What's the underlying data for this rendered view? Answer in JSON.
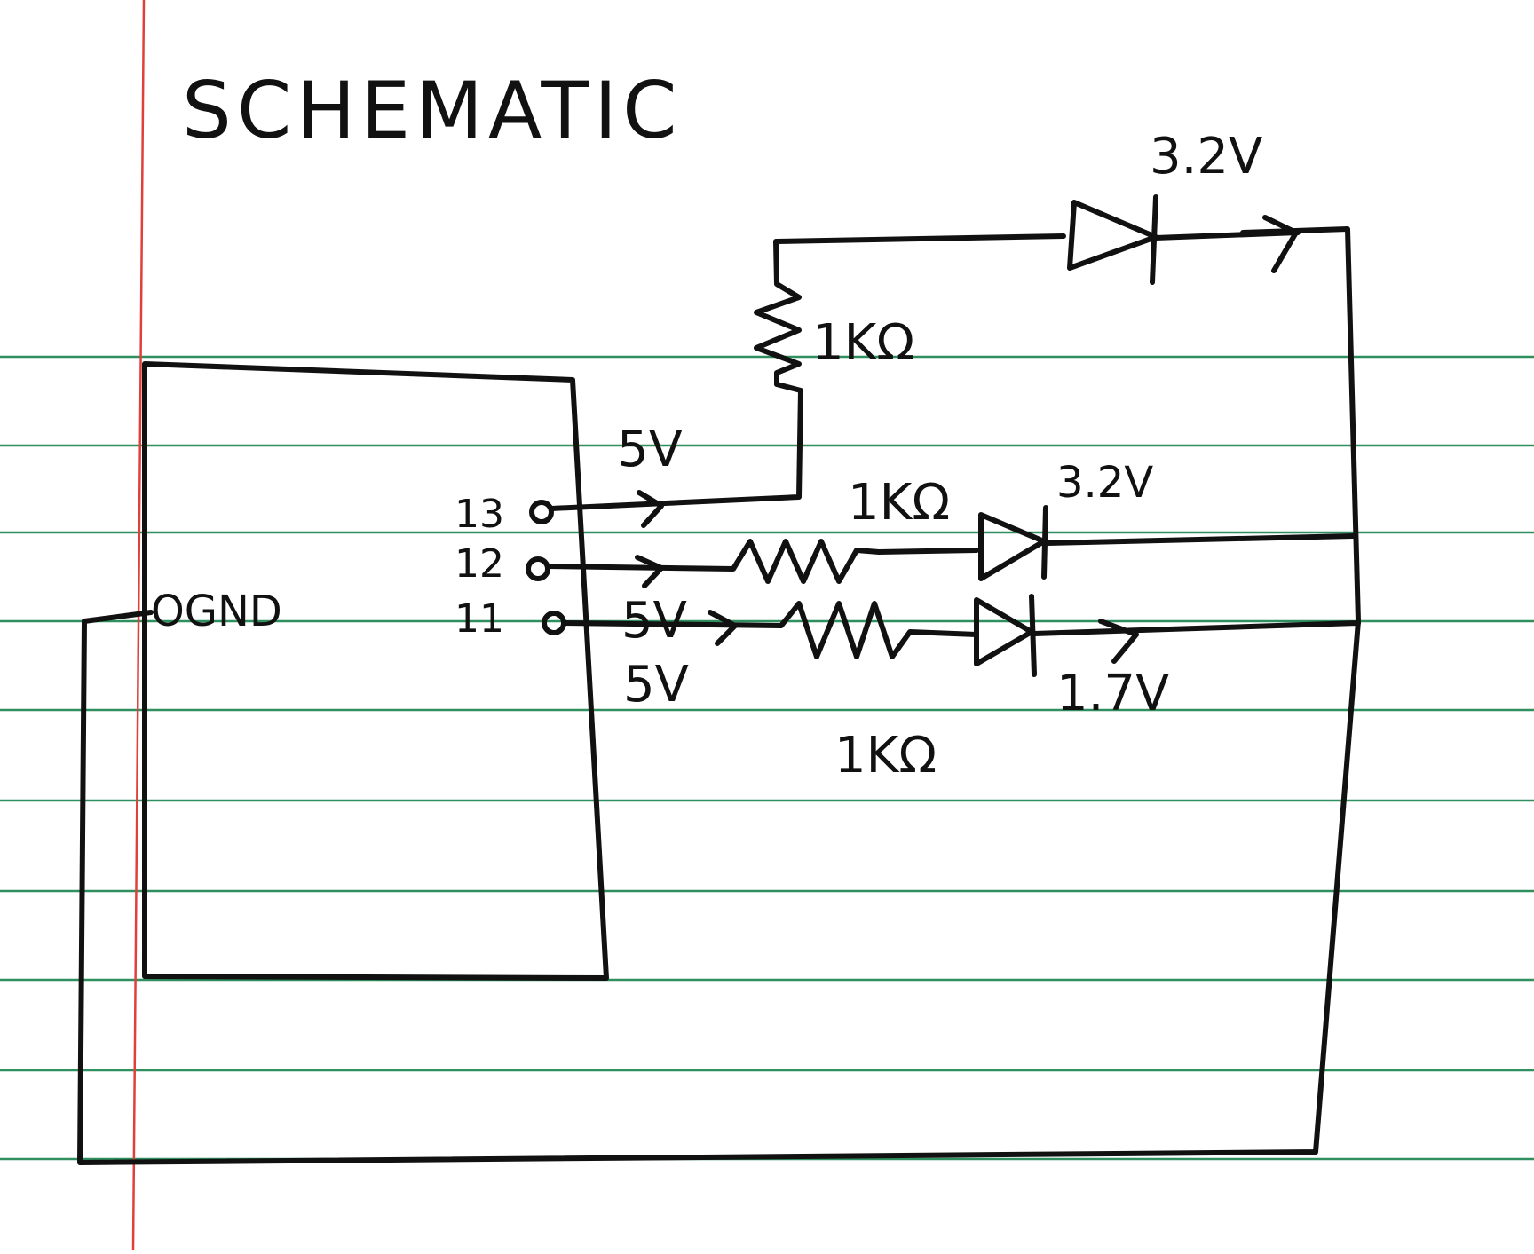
{
  "page": {
    "title": "SCHEMATIC",
    "colors": {
      "rule_lines": "#2f8f5e",
      "margin_line": "#e0403a",
      "ink": "#111111",
      "paper": "#ffffff"
    }
  },
  "board": {
    "gnd_label": "OGND",
    "pins": [
      {
        "id": "13",
        "label": "13"
      },
      {
        "id": "12",
        "label": "12"
      },
      {
        "id": "11",
        "label": "11"
      }
    ]
  },
  "branches": {
    "top": {
      "source_voltage": "5V",
      "resistor": "1KΩ",
      "led_voltage": "3.2V"
    },
    "middle": {
      "resistor": "1KΩ",
      "led_voltage": "3.2V"
    },
    "bottom": {
      "source_voltage_a": "5V",
      "source_voltage_b": "5V",
      "resistor": "1KΩ",
      "led_voltage": "1.7V"
    }
  }
}
